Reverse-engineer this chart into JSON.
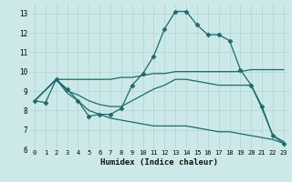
{
  "xlabel": "Humidex (Indice chaleur)",
  "bg_color": "#cce8e8",
  "grid_color": "#aed4d4",
  "line_color": "#1a6b6b",
  "xlim": [
    -0.5,
    23.5
  ],
  "ylim": [
    6,
    13.5
  ],
  "xticks": [
    0,
    1,
    2,
    3,
    4,
    5,
    6,
    7,
    8,
    9,
    10,
    11,
    12,
    13,
    14,
    15,
    16,
    17,
    18,
    19,
    20,
    21,
    22,
    23
  ],
  "yticks": [
    6,
    7,
    8,
    9,
    10,
    11,
    12,
    13
  ],
  "series": [
    {
      "x": [
        0,
        1,
        2,
        3,
        4,
        5,
        6,
        7,
        8,
        9,
        10,
        11,
        12,
        13,
        14,
        15,
        16,
        17,
        18,
        19,
        20,
        21,
        22,
        23
      ],
      "y": [
        8.5,
        8.4,
        9.6,
        9.1,
        8.5,
        7.7,
        7.8,
        7.8,
        8.1,
        9.3,
        9.9,
        10.8,
        12.2,
        13.1,
        13.1,
        12.4,
        11.9,
        11.9,
        11.6,
        10.1,
        9.3,
        8.2,
        6.7,
        6.3
      ],
      "marker": "D",
      "markersize": 2.5,
      "linewidth": 0.9
    },
    {
      "x": [
        0,
        2,
        3,
        4,
        5,
        6,
        7,
        8,
        9,
        10,
        11,
        12,
        13,
        14,
        15,
        16,
        17,
        18,
        19,
        20,
        21,
        22,
        23
      ],
      "y": [
        8.5,
        9.6,
        9.6,
        9.6,
        9.6,
        9.6,
        9.6,
        9.7,
        9.7,
        9.8,
        9.9,
        9.9,
        10.0,
        10.0,
        10.0,
        10.0,
        10.0,
        10.0,
        10.0,
        10.1,
        10.1,
        10.1,
        10.1
      ],
      "marker": null,
      "markersize": 0,
      "linewidth": 0.9
    },
    {
      "x": [
        0,
        2,
        3,
        4,
        5,
        6,
        7,
        8,
        9,
        10,
        11,
        12,
        13,
        14,
        15,
        16,
        17,
        18,
        19,
        20,
        21,
        22,
        23
      ],
      "y": [
        8.5,
        9.6,
        9.0,
        8.8,
        8.5,
        8.3,
        8.2,
        8.2,
        8.5,
        8.8,
        9.1,
        9.3,
        9.6,
        9.6,
        9.5,
        9.4,
        9.3,
        9.3,
        9.3,
        9.3,
        8.1,
        6.7,
        6.4
      ],
      "marker": null,
      "markersize": 0,
      "linewidth": 0.9
    },
    {
      "x": [
        0,
        2,
        3,
        4,
        5,
        6,
        7,
        8,
        9,
        10,
        11,
        12,
        13,
        14,
        15,
        16,
        17,
        18,
        19,
        20,
        21,
        22,
        23
      ],
      "y": [
        8.5,
        9.6,
        8.9,
        8.5,
        8.0,
        7.8,
        7.6,
        7.5,
        7.4,
        7.3,
        7.2,
        7.2,
        7.2,
        7.2,
        7.1,
        7.0,
        6.9,
        6.9,
        6.8,
        6.7,
        6.6,
        6.5,
        6.3
      ],
      "marker": null,
      "markersize": 0,
      "linewidth": 0.9
    }
  ]
}
